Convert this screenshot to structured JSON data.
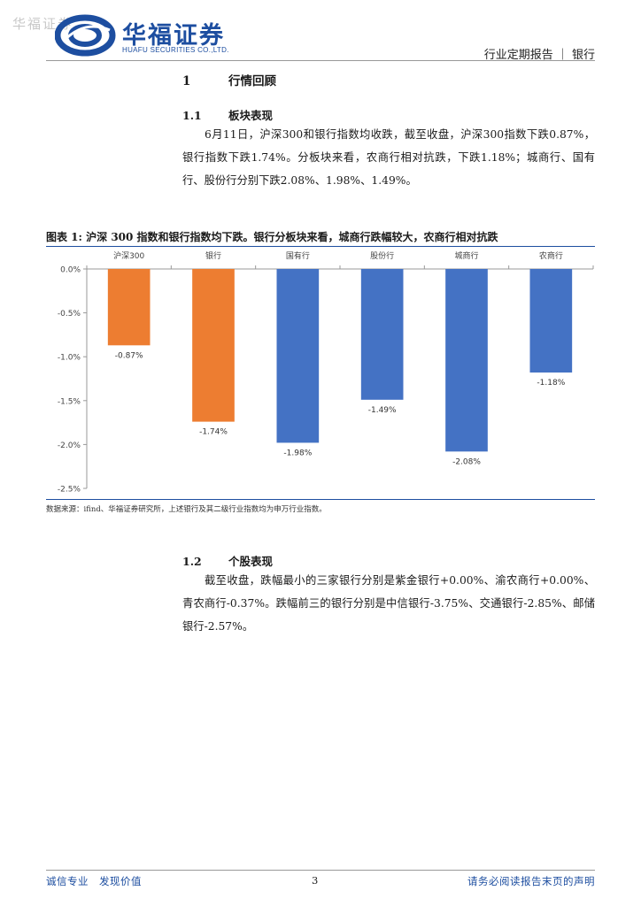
{
  "watermark": "华福证券",
  "logo": {
    "cn": "华福证券",
    "en": "HUAFU SECURITIES CO.,LTD."
  },
  "header": {
    "right": "行业定期报告 ｜ 银行"
  },
  "section1": {
    "num": "1",
    "title": "行情回顾"
  },
  "section11": {
    "num": "1.1",
    "title": "板块表现",
    "text": "6月11日，沪深300和银行指数均收跌，截至收盘，沪深300指数下跌0.87%，银行指数下跌1.74%。分板块来看，农商行相对抗跌，下跌1.18%；城商行、国有行、股份行分别下跌2.08%、1.98%、1.49%。"
  },
  "figure": {
    "title": "图表 1:  沪深 300 指数和银行指数均下跌。银行分板块来看，城商行跌幅较大，农商行相对抗跌",
    "source": "数据来源：ifind、华福证券研究所，上述银行及其二级行业指数均为申万行业指数。"
  },
  "chart_data": {
    "type": "bar",
    "categories": [
      "沪深300",
      "银行",
      "国有行",
      "股份行",
      "城商行",
      "农商行"
    ],
    "values": [
      -0.87,
      -1.74,
      -1.98,
      -1.49,
      -2.08,
      -1.18
    ],
    "value_labels": [
      "-0.87%",
      "-1.74%",
      "-1.98%",
      "-1.49%",
      "-2.08%",
      "-1.18%"
    ],
    "colors": [
      "#ed7d31",
      "#ed7d31",
      "#4472c4",
      "#4472c4",
      "#4472c4",
      "#4472c4"
    ],
    "ylim": [
      -2.5,
      0
    ],
    "yticks": [
      0,
      -0.5,
      -1.0,
      -1.5,
      -2.0,
      -2.5
    ],
    "ytick_labels": [
      "0.0%",
      "-0.5%",
      "-1.0%",
      "-1.5%",
      "-2.0%",
      "-2.5%"
    ],
    "title": "",
    "xlabel": "",
    "ylabel": "",
    "grid": false,
    "category_axis_position": "top"
  },
  "section12": {
    "num": "1.2",
    "title": "个股表现",
    "text": "截至收盘，跌幅最小的三家银行分别是紫金银行+0.00%、渝农商行+0.00%、青农商行-0.37%。跌幅前三的银行分别是中信银行-3.75%、交通银行-2.85%、邮储银行-2.57%。"
  },
  "footer": {
    "left": "诚信专业　发现价值",
    "page": "3",
    "right": "请务必阅读报告末页的声明"
  }
}
